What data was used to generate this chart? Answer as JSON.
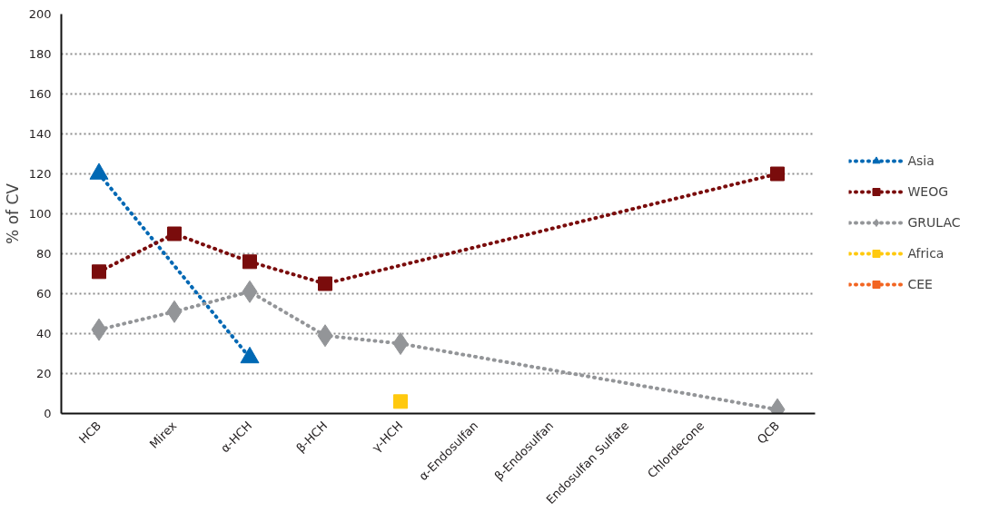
{
  "chart_data": {
    "type": "line",
    "ylabel": "% of CV",
    "categories": [
      "HCB",
      "Mirex",
      "α-HCH",
      "β-HCH",
      "γ-HCH",
      "α-Endosulfan",
      "β-Endosulfan",
      "Endosulfan Sulfate",
      "Chlordecone",
      "QCB"
    ],
    "ylim": [
      0,
      200
    ],
    "yticks": [
      0,
      20,
      40,
      60,
      80,
      100,
      120,
      140,
      160,
      180,
      200
    ],
    "grid": "y",
    "legend": "right",
    "line_style": "dotted",
    "series": [
      {
        "name": "Asia",
        "color": "#0068b4",
        "marker": "triangle",
        "values": [
          120,
          null,
          28,
          null,
          null,
          null,
          null,
          null,
          null,
          null
        ]
      },
      {
        "name": "WEOG",
        "color": "#7a0c0c",
        "marker": "square",
        "values": [
          71,
          90,
          76,
          65,
          null,
          null,
          null,
          null,
          null,
          120
        ]
      },
      {
        "name": "GRULAC",
        "color": "#939598",
        "marker": "diamond",
        "values": [
          42,
          51,
          61,
          39,
          35,
          null,
          null,
          null,
          null,
          2
        ]
      },
      {
        "name": "Africa",
        "color": "#ffc90e",
        "marker": "square",
        "values": [
          null,
          null,
          null,
          null,
          6,
          null,
          null,
          null,
          null,
          null
        ]
      },
      {
        "name": "CEE",
        "color": "#f26522",
        "marker": "square",
        "values": [
          null,
          null,
          null,
          null,
          null,
          null,
          null,
          null,
          null,
          null
        ]
      }
    ]
  }
}
